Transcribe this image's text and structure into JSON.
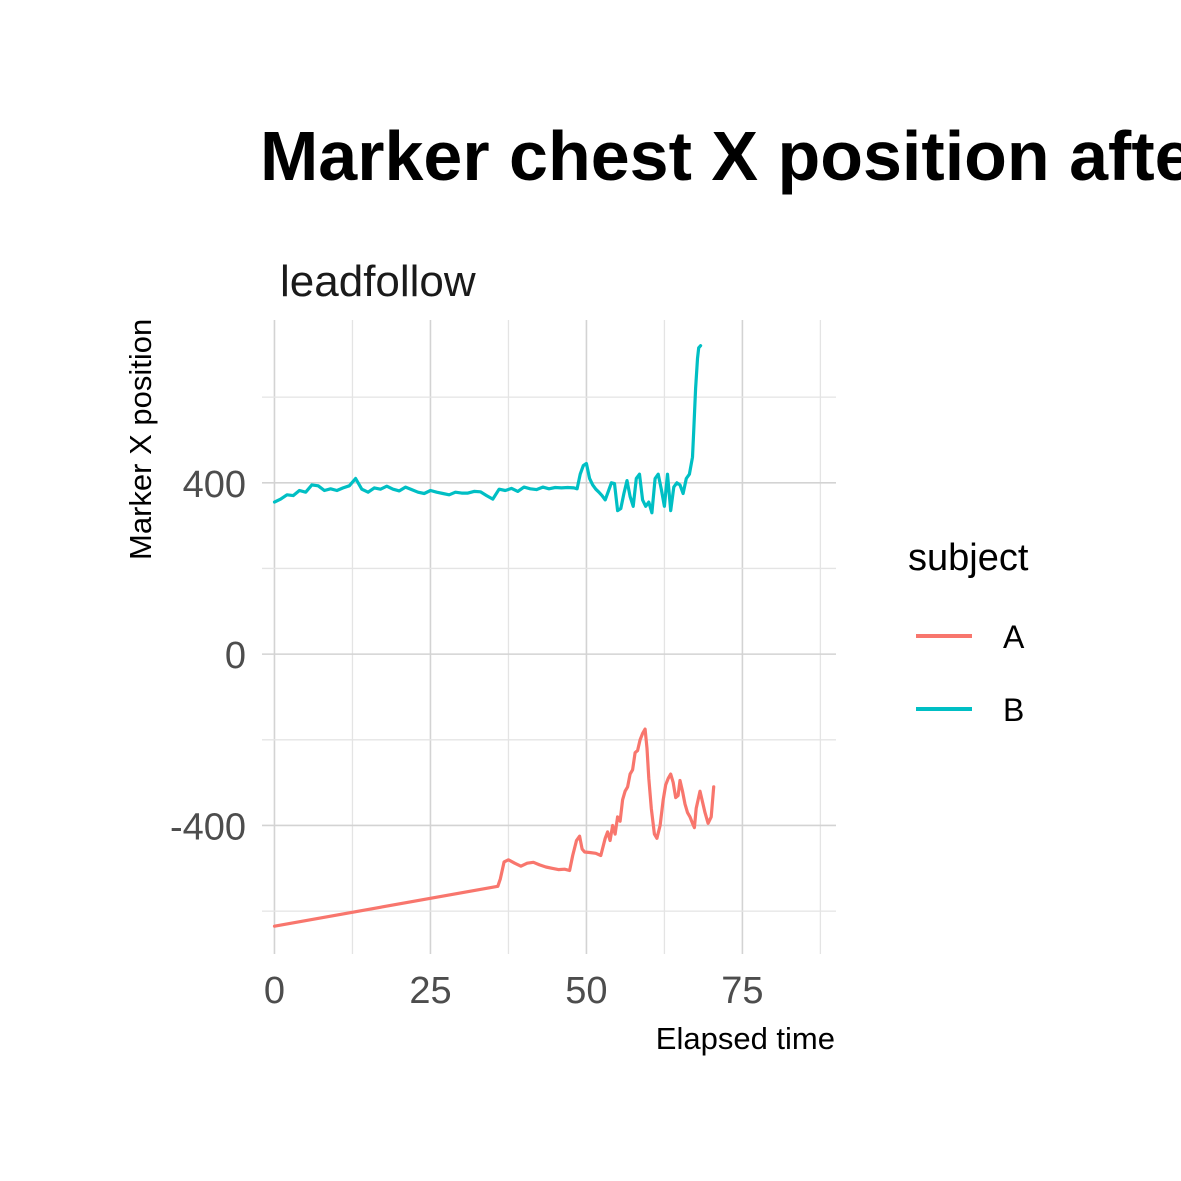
{
  "chart_data": {
    "type": "line",
    "title": "Marker chest X position after ga",
    "facet_label": "leadfollow",
    "xlabel": "Elapsed time",
    "ylabel": "Marker X position",
    "xlim": [
      -2,
      90
    ],
    "ylim": [
      -700,
      780
    ],
    "x_ticks": [
      0,
      25,
      50,
      75
    ],
    "x_tick_labels": [
      "0",
      "25",
      "50",
      "75"
    ],
    "y_ticks": [
      -400,
      0,
      400
    ],
    "y_tick_labels": [
      "-400",
      "0",
      "400"
    ],
    "grid": true,
    "legend": {
      "title": "subject",
      "position": "right"
    },
    "series": [
      {
        "name": "A",
        "color": "#F8766D",
        "x": [
          0,
          35.8,
          36.2,
          36.8,
          37.5,
          38.5,
          39.5,
          40.5,
          41.5,
          42.5,
          43.5,
          44.5,
          45.5,
          46.5,
          47.3,
          47.8,
          48.4,
          48.9,
          49.3,
          49.7,
          50.5,
          51.5,
          52.3,
          53,
          53.4,
          53.8,
          54.2,
          54.6,
          55,
          55.4,
          55.8,
          56.2,
          56.6,
          57,
          57.4,
          57.8,
          58.2,
          58.6,
          59,
          59.4,
          59.7,
          60,
          60.4,
          60.9,
          61.3,
          61.8,
          62.3,
          62.7,
          63.1,
          63.5,
          63.9,
          64.3,
          64.7,
          65,
          65.4,
          65.8,
          66.2,
          66.6,
          67,
          67.3,
          67.6,
          67.9,
          68.2,
          68.6,
          69,
          69.5,
          70,
          70.4
        ],
        "y": [
          -635,
          -542,
          -525,
          -485,
          -480,
          -488,
          -495,
          -488,
          -486,
          -492,
          -497,
          -500,
          -503,
          -502,
          -505,
          -470,
          -435,
          -425,
          -455,
          -462,
          -463,
          -465,
          -470,
          -430,
          -415,
          -435,
          -400,
          -420,
          -380,
          -390,
          -340,
          -320,
          -310,
          -280,
          -270,
          -230,
          -225,
          -200,
          -185,
          -175,
          -220,
          -290,
          -360,
          -420,
          -430,
          -400,
          -340,
          -305,
          -290,
          -280,
          -300,
          -335,
          -330,
          -295,
          -320,
          -350,
          -370,
          -380,
          -395,
          -405,
          -360,
          -340,
          -320,
          -345,
          -370,
          -395,
          -380,
          -310
        ]
      },
      {
        "name": "B",
        "color": "#00BFC4",
        "x": [
          0,
          1,
          2,
          3,
          4,
          5,
          6,
          7,
          8,
          9,
          10,
          11,
          12,
          13,
          14,
          15,
          16,
          17,
          18,
          19,
          20,
          21,
          22,
          23,
          24,
          25,
          26,
          27,
          28,
          29,
          30,
          31,
          32,
          33,
          34,
          35,
          36,
          37,
          38,
          39,
          40,
          41,
          42,
          43,
          44,
          45,
          46,
          47,
          48,
          48.5,
          49,
          49.5,
          50,
          50.5,
          51,
          51.5,
          52,
          52.5,
          53,
          53.5,
          54,
          54.5,
          55,
          55.5,
          56,
          56.5,
          57,
          57.5,
          58,
          58.5,
          59,
          59.5,
          60,
          60.5,
          61,
          61.5,
          62,
          62.5,
          63,
          63.5,
          64,
          64.5,
          65,
          65.5,
          66,
          66.5,
          67,
          67.2,
          67.5,
          67.8,
          68,
          68.3
        ],
        "y": [
          355,
          362,
          372,
          370,
          382,
          378,
          395,
          393,
          382,
          386,
          382,
          388,
          393,
          410,
          385,
          378,
          388,
          385,
          392,
          385,
          381,
          390,
          384,
          378,
          375,
          382,
          378,
          375,
          372,
          378,
          376,
          376,
          380,
          379,
          370,
          362,
          385,
          382,
          387,
          380,
          390,
          386,
          384,
          390,
          386,
          389,
          388,
          389,
          388,
          386,
          420,
          440,
          445,
          410,
          395,
          385,
          378,
          370,
          360,
          380,
          400,
          398,
          335,
          340,
          375,
          405,
          368,
          345,
          410,
          420,
          360,
          345,
          355,
          330,
          410,
          420,
          385,
          345,
          420,
          335,
          390,
          400,
          395,
          375,
          410,
          420,
          460,
          520,
          620,
          690,
          715,
          720
        ]
      }
    ]
  }
}
